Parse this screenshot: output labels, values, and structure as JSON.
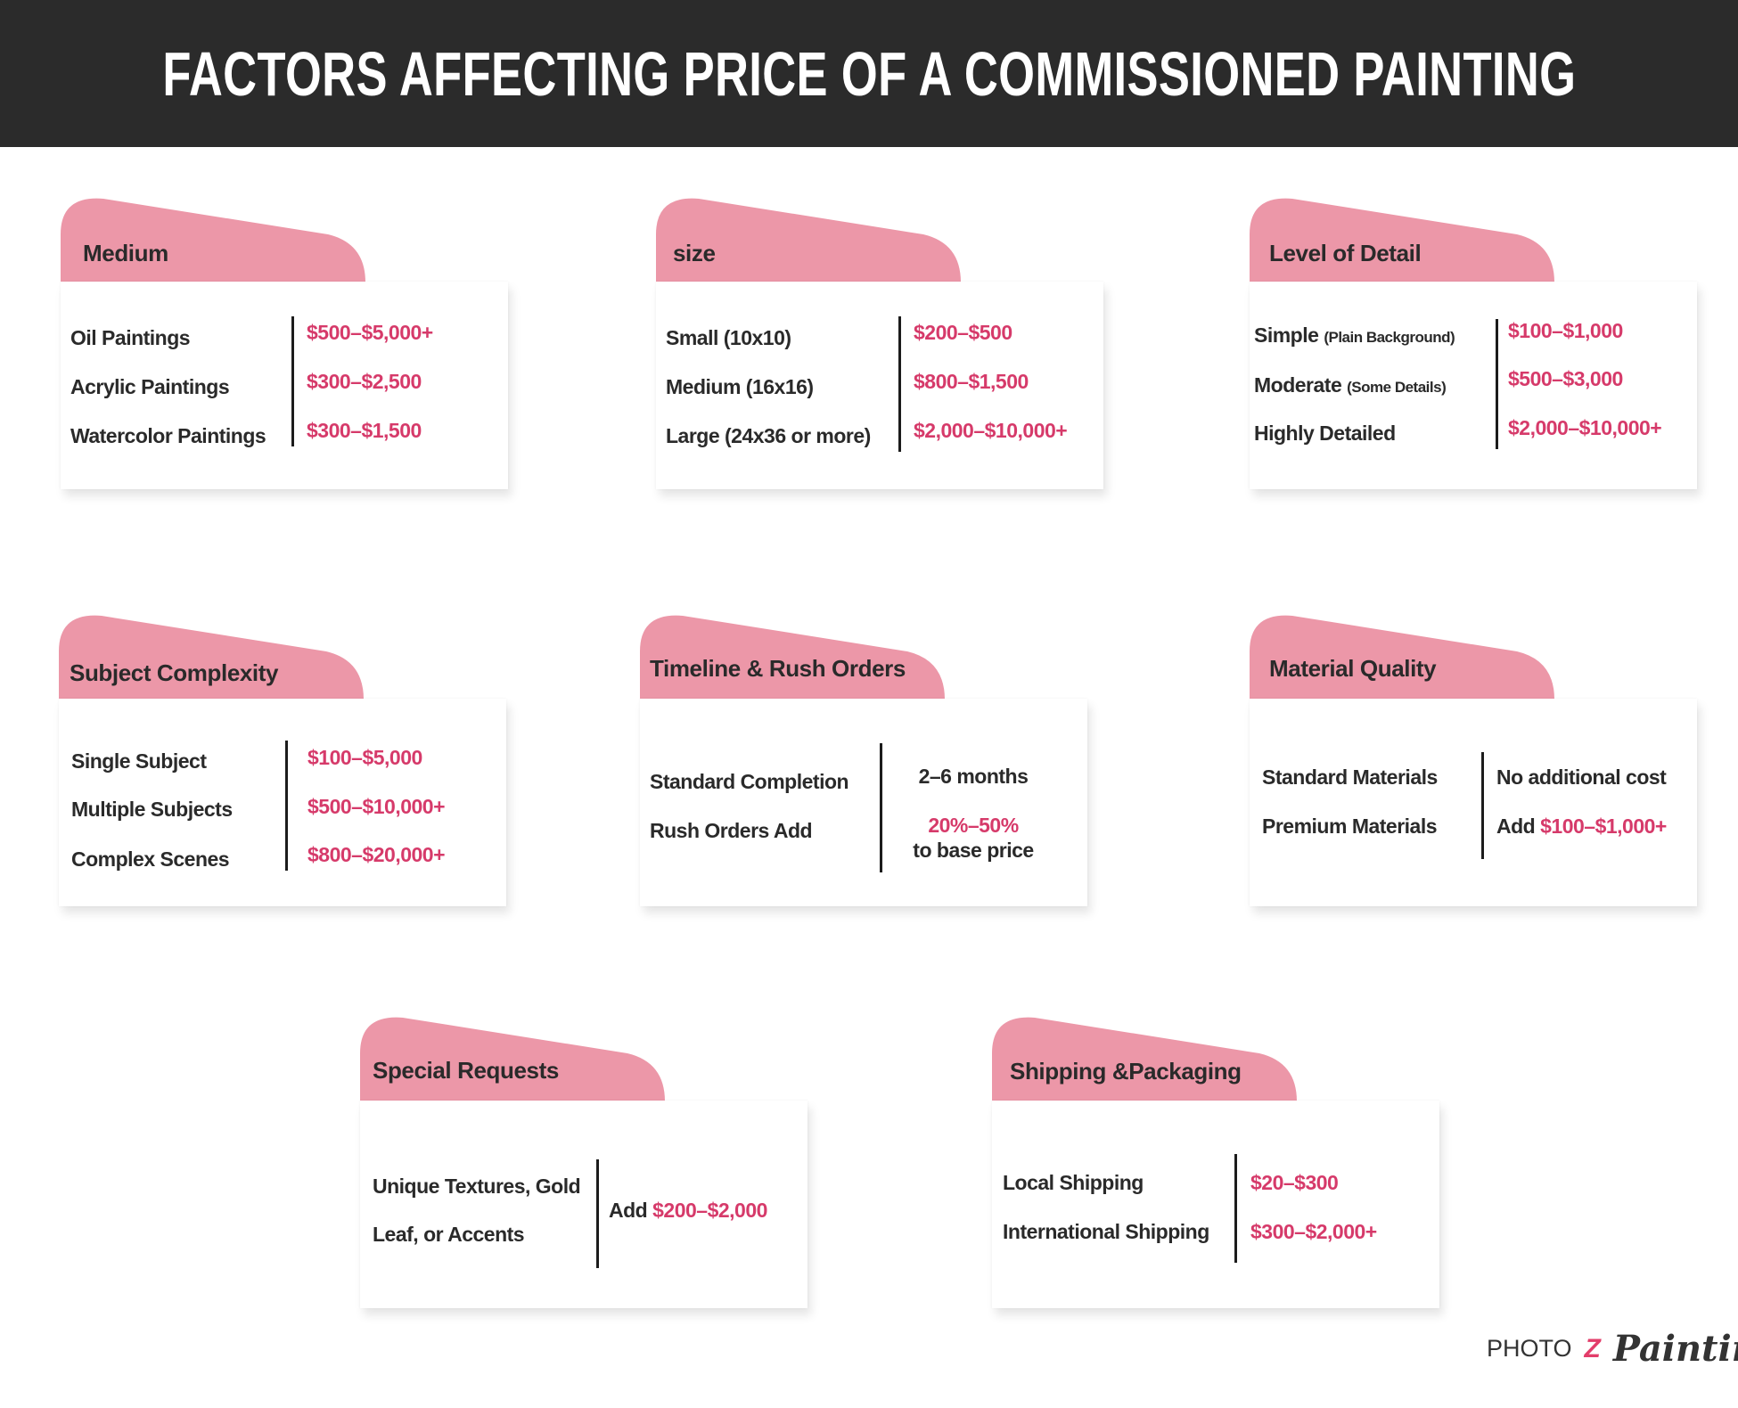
{
  "title": "FACTORS AFFECTING PRICE OF A COMMISSIONED PAINTING",
  "colors": {
    "header_bg": "#2b2b2b",
    "tab": "#ec97a8",
    "accent": "#d63a6a"
  },
  "cards": [
    {
      "title": "Medium",
      "rows": [
        "Oil Paintings",
        "Acrylic Paintings",
        "Watercolor Paintings"
      ],
      "values": [
        "$500–$5,000+",
        "$300–$2,500",
        "$300–$1,500"
      ]
    },
    {
      "title": "size",
      "rows": [
        "Small (10x10)",
        "Medium (16x16)",
        "Large (24x36 or more)"
      ],
      "values": [
        "$200–$500",
        "$800–$1,500",
        "$2,000–$10,000+"
      ]
    },
    {
      "title": "Level of Detail",
      "rows": [
        {
          "label": "Simple",
          "note": "(Plain Background)"
        },
        {
          "label": "Moderate",
          "note": "(Some Details)"
        },
        {
          "label": "Highly Detailed"
        }
      ],
      "values": [
        "$100–$1,000",
        "$500–$3,000",
        "$2,000–$10,000+"
      ]
    },
    {
      "title": "Subject Complexity",
      "rows": [
        "Single Subject",
        "Multiple Subjects",
        "Complex Scenes"
      ],
      "values": [
        "$100–$5,000",
        "$500–$10,000+",
        "$800–$20,000+"
      ]
    },
    {
      "title": "Timeline & Rush Orders",
      "rows": [
        "Standard Completion",
        "Rush Orders Add"
      ],
      "values": [
        "2–6 months",
        "20%–50%",
        "to base price"
      ]
    },
    {
      "title": "Material Quality",
      "rows": [
        "Standard Materials",
        "Premium Materials"
      ],
      "values": [
        {
          "text": "No additional cost"
        },
        {
          "prefix": "Add",
          "value": "$100–$1,000+"
        }
      ]
    },
    {
      "title": "Special Requests",
      "rows": [
        "Unique Textures, Gold",
        "Leaf, or Accents"
      ],
      "values": [
        {
          "prefix": "Add",
          "value": "$200–$2,000"
        }
      ]
    },
    {
      "title": "Shipping &Packaging",
      "rows": [
        "Local Shipping",
        "International Shipping"
      ],
      "values": [
        "$20–$300",
        "$300–$2,000+"
      ]
    }
  ],
  "logo": {
    "photo": "PHOTO",
    "z": "Z",
    "script": "Painting"
  }
}
